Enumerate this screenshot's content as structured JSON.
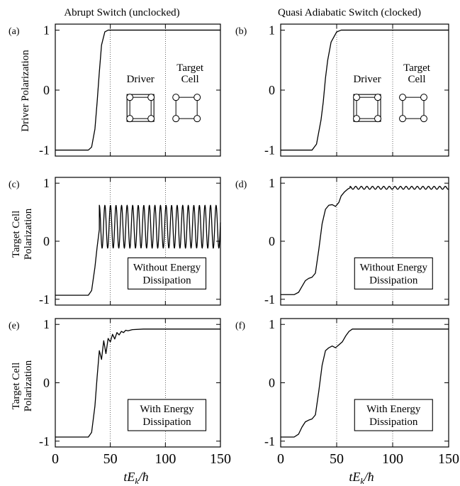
{
  "columns": [
    {
      "title": "Abrupt Switch (unclocked)"
    },
    {
      "title": "Quasi Adiabatic Switch (clocked)"
    }
  ],
  "rows": [
    {
      "ylabel": [
        "Driver Polarization"
      ]
    },
    {
      "ylabel": [
        "Target Cell",
        "Polarization"
      ]
    },
    {
      "ylabel": [
        "Target Cell",
        "Polarization"
      ]
    }
  ],
  "xlabel": {
    "main": "tE",
    "sub": "k",
    "tail": "/ħ"
  },
  "cell_labels": {
    "driver": "Driver",
    "target": [
      "Target",
      "Cell"
    ]
  },
  "chart_data": [
    {
      "panel": "(a)",
      "type": "line",
      "xlim": [
        0,
        150
      ],
      "ylim": [
        -1.1,
        1.1
      ],
      "xticks": [
        0,
        50,
        100,
        150
      ],
      "yticks": [
        -1,
        0,
        1
      ],
      "vlines": [
        50,
        100
      ],
      "inset": "cells",
      "series": [
        {
          "x": [
            0,
            30,
            33,
            36,
            38,
            40,
            42,
            45,
            48,
            150
          ],
          "y": [
            -1,
            -1,
            -0.95,
            -0.65,
            -0.2,
            0.3,
            0.75,
            0.97,
            1,
            1
          ]
        }
      ]
    },
    {
      "panel": "(b)",
      "type": "line",
      "xlim": [
        0,
        150
      ],
      "ylim": [
        -1.1,
        1.1
      ],
      "xticks": [
        0,
        50,
        100,
        150
      ],
      "yticks": [
        -1,
        0,
        1
      ],
      "vlines": [
        50,
        100
      ],
      "inset": "cells",
      "series": [
        {
          "x": [
            0,
            28,
            32,
            36,
            38,
            40,
            42,
            45,
            50,
            54,
            150
          ],
          "y": [
            -1,
            -1,
            -0.9,
            -0.5,
            -0.2,
            0.2,
            0.5,
            0.8,
            0.97,
            1,
            1
          ]
        }
      ]
    },
    {
      "panel": "(c)",
      "type": "line",
      "xlim": [
        0,
        150
      ],
      "ylim": [
        -1.1,
        1.1
      ],
      "xticks": [
        0,
        50,
        100,
        150
      ],
      "yticks": [
        -1,
        0,
        1
      ],
      "vlines": [
        50,
        100
      ],
      "annotation": [
        "Without Energy",
        "Dissipation"
      ],
      "oscillation": {
        "from": 40,
        "to": 150,
        "center": 0.25,
        "amplitude": 0.37,
        "period": 5.05
      },
      "series": [
        {
          "x": [
            0,
            30,
            33,
            36,
            38,
            40
          ],
          "y": [
            -0.93,
            -0.93,
            -0.85,
            -0.45,
            -0.1,
            0.2
          ]
        }
      ]
    },
    {
      "panel": "(d)",
      "type": "line",
      "xlim": [
        0,
        150
      ],
      "ylim": [
        -1.1,
        1.1
      ],
      "xticks": [
        0,
        50,
        100,
        150
      ],
      "yticks": [
        -1,
        0,
        1
      ],
      "vlines": [
        50,
        100
      ],
      "annotation": [
        "Without Energy",
        "Dissipation"
      ],
      "oscillation": {
        "from": 62,
        "to": 150,
        "center": 0.92,
        "amplitude": 0.025,
        "period": 5
      },
      "series": [
        {
          "x": [
            0,
            12,
            16,
            19,
            22,
            25,
            28,
            31,
            34,
            37,
            40,
            43,
            46,
            49,
            52,
            54,
            57,
            60,
            62
          ],
          "y": [
            -0.92,
            -0.92,
            -0.88,
            -0.78,
            -0.68,
            -0.64,
            -0.62,
            -0.55,
            -0.15,
            0.3,
            0.55,
            0.62,
            0.63,
            0.6,
            0.67,
            0.78,
            0.85,
            0.9,
            0.92
          ]
        }
      ]
    },
    {
      "panel": "(e)",
      "type": "line",
      "xlim": [
        0,
        150
      ],
      "ylim": [
        -1.1,
        1.1
      ],
      "xticks": [
        0,
        50,
        100,
        150
      ],
      "yticks": [
        -1,
        0,
        1
      ],
      "vlines": [
        50,
        100
      ],
      "annotation": [
        "With Energy",
        "Dissipation"
      ],
      "series": [
        {
          "x": [
            0,
            30,
            33,
            36,
            38,
            40,
            42,
            44,
            46,
            48,
            50,
            52,
            54,
            56,
            58,
            60,
            62,
            64,
            66,
            70,
            80,
            150
          ],
          "y": [
            -0.93,
            -0.93,
            -0.85,
            -0.4,
            0.1,
            0.55,
            0.4,
            0.72,
            0.5,
            0.76,
            0.7,
            0.83,
            0.75,
            0.86,
            0.82,
            0.88,
            0.86,
            0.9,
            0.89,
            0.91,
            0.92,
            0.92
          ]
        }
      ]
    },
    {
      "panel": "(f)",
      "type": "line",
      "xlim": [
        0,
        150
      ],
      "ylim": [
        -1.1,
        1.1
      ],
      "xticks": [
        0,
        50,
        100,
        150
      ],
      "yticks": [
        -1,
        0,
        1
      ],
      "vlines": [
        50,
        100
      ],
      "annotation": [
        "With Energy",
        "Dissipation"
      ],
      "series": [
        {
          "x": [
            0,
            12,
            16,
            19,
            22,
            25,
            28,
            31,
            34,
            37,
            40,
            43,
            46,
            49,
            52,
            55,
            58,
            61,
            64,
            70,
            150
          ],
          "y": [
            -0.93,
            -0.93,
            -0.88,
            -0.76,
            -0.67,
            -0.64,
            -0.62,
            -0.55,
            -0.15,
            0.3,
            0.55,
            0.6,
            0.63,
            0.6,
            0.65,
            0.7,
            0.8,
            0.88,
            0.92,
            0.92,
            0.92
          ]
        }
      ]
    }
  ]
}
